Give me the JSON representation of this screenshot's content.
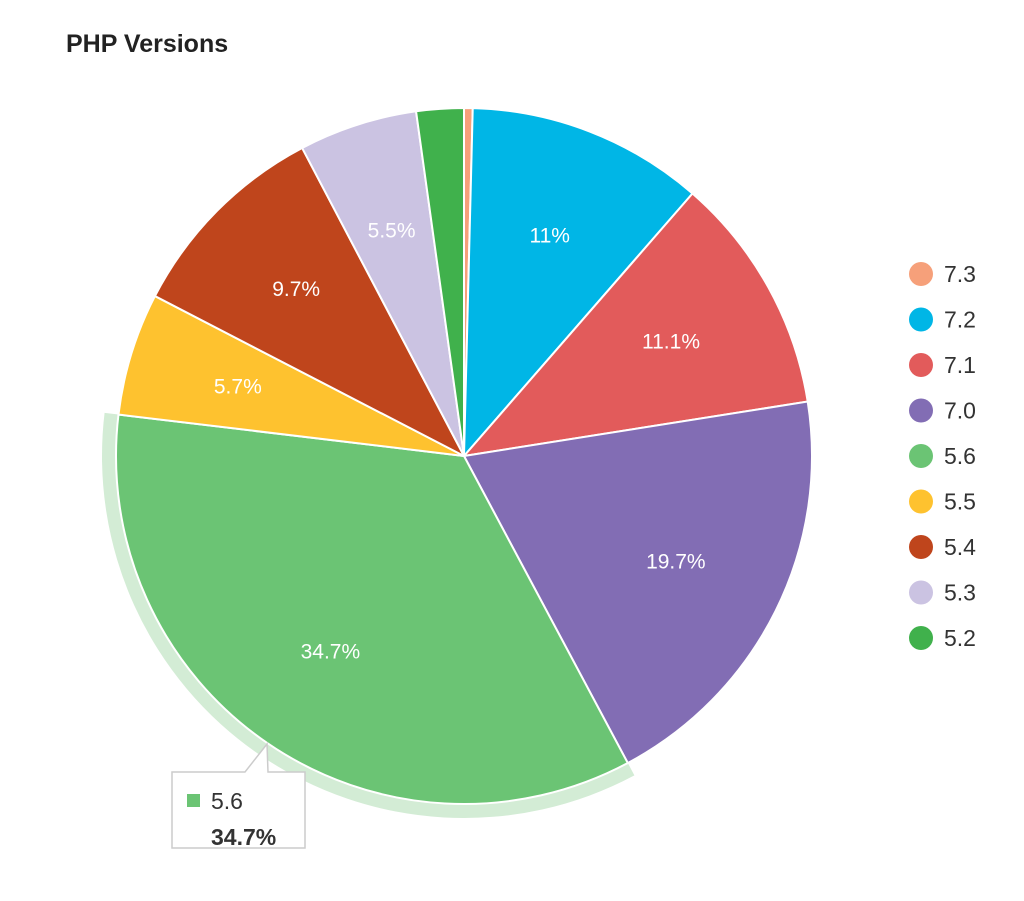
{
  "chart_data": {
    "type": "pie",
    "title": "PHP Versions",
    "legend_position": "right",
    "start_angle": "top",
    "direction": "clockwise",
    "slices": [
      {
        "label": "7.3",
        "value": 0.4,
        "display": "",
        "color": "#f6a07a"
      },
      {
        "label": "7.2",
        "value": 11.0,
        "display": "11%",
        "color": "#00b6e6"
      },
      {
        "label": "7.1",
        "value": 11.1,
        "display": "11.1%",
        "color": "#e25b5b"
      },
      {
        "label": "7.0",
        "value": 19.7,
        "display": "19.7%",
        "color": "#826db4"
      },
      {
        "label": "5.6",
        "value": 34.7,
        "display": "34.7%",
        "color": "#6bc474"
      },
      {
        "label": "5.5",
        "value": 5.7,
        "display": "5.7%",
        "color": "#fec22f"
      },
      {
        "label": "5.4",
        "value": 9.7,
        "display": "9.7%",
        "color": "#bf451c"
      },
      {
        "label": "5.3",
        "value": 5.5,
        "display": "5.5%",
        "color": "#cbc3e2"
      },
      {
        "label": "5.2",
        "value": 2.2,
        "display": "",
        "color": "#40b14c"
      }
    ],
    "tooltip": {
      "label": "5.6",
      "value": "34.7%",
      "highlight_color": "#d3ecd5"
    }
  }
}
